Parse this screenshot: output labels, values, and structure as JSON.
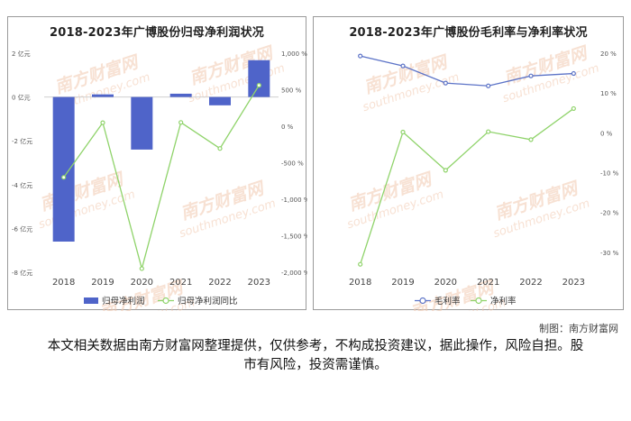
{
  "chart_data": [
    {
      "type": "bar+line",
      "title": "2018-2023年广博股份归母净利润状况",
      "categories": [
        "2018",
        "2019",
        "2020",
        "2021",
        "2022",
        "2023"
      ],
      "y_left": {
        "ylim": [
          -8,
          2
        ],
        "ticks": [
          2,
          0,
          -2,
          -4,
          -6,
          -8
        ],
        "tick_labels": [
          "2 亿元",
          "0 亿元",
          "-2 亿元",
          "-4 亿元",
          "-6 亿元",
          "-8 亿元"
        ]
      },
      "y_right": {
        "ylim": [
          -2000,
          1000
        ],
        "ticks": [
          1000,
          500,
          0,
          -500,
          -1000,
          -1500,
          -2000
        ],
        "tick_labels": [
          "1,000 %",
          "500 %",
          "0 %",
          "-500 %",
          "-1,000 %",
          "-1,500 %",
          "-2,000 %"
        ]
      },
      "series": [
        {
          "name": "归母净利润",
          "kind": "bar",
          "axis": "left",
          "color": "#4f64c9",
          "values": [
            -6.6,
            0.12,
            -2.4,
            0.15,
            -0.38,
            1.68
          ]
        },
        {
          "name": "归母净利润同比",
          "kind": "line",
          "axis": "right",
          "color": "#8fd36a",
          "values": [
            -700,
            48,
            -1950,
            52,
            -305,
            560
          ]
        }
      ],
      "legend_position": "bottom"
    },
    {
      "type": "line",
      "title": "2018-2023年广博股份毛利率与净利率状况",
      "categories": [
        "2018",
        "2019",
        "2020",
        "2021",
        "2022",
        "2023"
      ],
      "y_right": {
        "ylim": [
          -35,
          20
        ],
        "ticks": [
          20,
          10,
          0,
          -10,
          -20,
          -30
        ],
        "tick_labels": [
          "20 %",
          "10 %",
          "0 %",
          "-10 %",
          "-20 %",
          "-30 %"
        ]
      },
      "series": [
        {
          "name": "毛利率",
          "color": "#5c73c7",
          "values": [
            19.3,
            16.8,
            12.5,
            11.8,
            14.3,
            14.9
          ]
        },
        {
          "name": "净利率",
          "color": "#8fd36a",
          "values": [
            -33,
            0.2,
            -9.4,
            0.3,
            -1.7,
            6.1
          ]
        }
      ],
      "legend_position": "bottom"
    }
  ],
  "watermark": {
    "text": "南方财富网",
    "url_text": "southmoney.com"
  },
  "credit": "制图：南方财富网",
  "disclaimer": "本文相关数据由南方财富网整理提供，仅供参考，不构成投资建议，据此操作，风险自担。股市有风险，投资需谨慎。",
  "colors": {
    "bar": "#4f64c9",
    "line_green": "#8fd36a",
    "line_blue": "#5c73c7",
    "watermark": "#f2c9b0"
  }
}
